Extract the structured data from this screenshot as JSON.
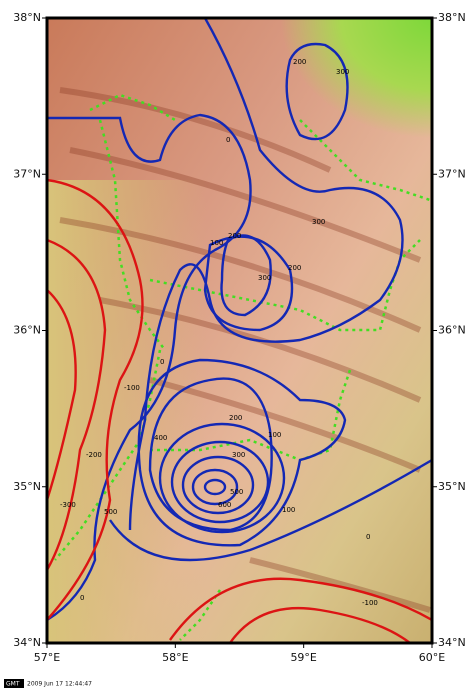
{
  "map": {
    "lon_ticks": [
      {
        "value": 57,
        "label": "57°E"
      },
      {
        "value": 58,
        "label": "58°E"
      },
      {
        "value": 59,
        "label": "59°E"
      },
      {
        "value": 60,
        "label": "60°E"
      }
    ],
    "lat_ticks": [
      {
        "value": 34,
        "label": "34°N"
      },
      {
        "value": 35,
        "label": "35°N"
      },
      {
        "value": 36,
        "label": "36°N"
      },
      {
        "value": 37,
        "label": "37°N"
      },
      {
        "value": 38,
        "label": "38°N"
      }
    ],
    "lonlim": [
      57,
      60
    ],
    "latlim": [
      34,
      38
    ],
    "contour_labels": [
      "200",
      "300",
      "0",
      "100",
      "200",
      "300",
      "200",
      "300",
      "0",
      "-100",
      "-200",
      "-300",
      "100",
      "200",
      "300",
      "400",
      "500",
      "600",
      "500",
      "100",
      "0",
      "0",
      "-100"
    ],
    "footer": {
      "logo": "GMT",
      "timestamp": "2009 Jun 17 12:44:47"
    }
  }
}
